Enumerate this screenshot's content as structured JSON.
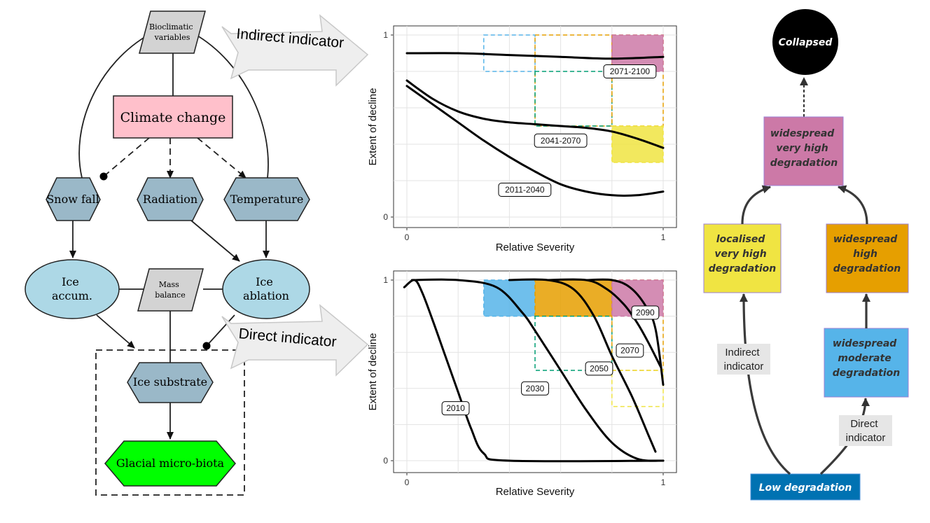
{
  "dag": {
    "bioclimatic": [
      "Bioclimatic",
      "variables"
    ],
    "climate_change": "Climate change",
    "snow_fall": "Snow fall",
    "radiation": "Radiation",
    "temperature": "Temperature",
    "ice_accum": [
      "Ice",
      "accum."
    ],
    "mass_balance": [
      "Mass",
      "balance"
    ],
    "ice_ablation": [
      "Ice",
      "ablation"
    ],
    "ice_substrate": "Ice substrate",
    "glacial_microbiota": "Glacial micro-biota",
    "colors": {
      "climate_change_fill": "#ffc0cb",
      "hexagon_fill": "#9ab8c8",
      "ellipse_fill": "#add8e6",
      "parallelogram_fill": "#d3d3d3",
      "microbiota_fill": "#00ff00"
    }
  },
  "arrows": {
    "indirect": "Indirect indicator",
    "direct": "Direct indicator"
  },
  "chart_data": [
    {
      "type": "line",
      "xlabel": "Relative Severity",
      "ylabel": "Extent of decline",
      "xlim": [
        0,
        1
      ],
      "ylim": [
        0,
        1
      ],
      "xticks": [
        "0",
        "1"
      ],
      "yticks": [
        "0",
        "1"
      ],
      "grid": true,
      "series": [
        {
          "name": "2071-2100",
          "x": [
            0,
            0.2,
            0.4,
            0.6,
            0.8,
            1.0
          ],
          "y": [
            0.9,
            0.9,
            0.89,
            0.88,
            0.87,
            0.88
          ]
        },
        {
          "name": "2041-2070",
          "x": [
            0,
            0.1,
            0.2,
            0.3,
            0.4,
            0.5,
            0.6,
            0.7,
            0.8,
            0.9,
            1.0
          ],
          "y": [
            0.75,
            0.65,
            0.58,
            0.54,
            0.52,
            0.51,
            0.5,
            0.49,
            0.47,
            0.43,
            0.38
          ]
        },
        {
          "name": "2011-2040",
          "x": [
            0,
            0.1,
            0.2,
            0.3,
            0.4,
            0.5,
            0.6,
            0.7,
            0.8,
            0.9,
            1.0
          ],
          "y": [
            0.72,
            0.62,
            0.52,
            0.42,
            0.33,
            0.25,
            0.18,
            0.14,
            0.12,
            0.12,
            0.14
          ]
        }
      ],
      "regions": [
        {
          "x0": 0.3,
          "x1": 0.5,
          "y0": 0.8,
          "y1": 1.0,
          "color": "#56b4e9",
          "filled": false
        },
        {
          "x0": 0.5,
          "x1": 0.8,
          "y0": 0.5,
          "y1": 1.0,
          "color": "#e69f00",
          "filled": false
        },
        {
          "x0": 0.5,
          "x1": 0.8,
          "y0": 0.5,
          "y1": 0.8,
          "color": "#009e73",
          "filled": false
        },
        {
          "x0": 0.8,
          "x1": 1.0,
          "y0": 0.5,
          "y1": 1.0,
          "color": "#e69f00",
          "filled": false
        },
        {
          "x0": 0.8,
          "x1": 1.0,
          "y0": 0.8,
          "y1": 1.0,
          "color": "#cc79a7",
          "filled": true
        },
        {
          "x0": 0.8,
          "x1": 1.0,
          "y0": 0.3,
          "y1": 0.5,
          "color": "#f0e442",
          "filled": true
        }
      ],
      "labels": [
        {
          "text": "2071-2100",
          "x": 0.87,
          "y": 0.8
        },
        {
          "text": "2041-2070",
          "x": 0.6,
          "y": 0.42
        },
        {
          "text": "2011-2040",
          "x": 0.46,
          "y": 0.15
        }
      ]
    },
    {
      "type": "line",
      "xlabel": "Relative Severity",
      "ylabel": "Extent of decline",
      "xlim": [
        0,
        1
      ],
      "ylim": [
        0,
        1
      ],
      "xticks": [
        "0",
        "1"
      ],
      "yticks": [
        "0",
        "1"
      ],
      "grid": true,
      "series": [
        {
          "name": "2010",
          "x": [
            -0.01,
            0.03,
            0.06,
            0.1,
            0.15,
            0.2,
            0.25,
            0.3,
            0.4,
            1.0
          ],
          "y": [
            0.96,
            1.0,
            0.93,
            0.78,
            0.58,
            0.38,
            0.18,
            0.04,
            0.0,
            0.0
          ]
        },
        {
          "name": "2030",
          "x": [
            0.02,
            0.2,
            0.35,
            0.45,
            0.5,
            0.6,
            0.7,
            0.8,
            0.9,
            1.0
          ],
          "y": [
            1.0,
            1.0,
            0.96,
            0.82,
            0.72,
            0.5,
            0.28,
            0.1,
            0.01,
            0.0
          ]
        },
        {
          "name": "2050",
          "x": [
            0.4,
            0.55,
            0.65,
            0.73,
            0.8,
            0.88,
            0.94,
            0.97
          ],
          "y": [
            1.0,
            1.0,
            0.95,
            0.8,
            0.58,
            0.35,
            0.15,
            0.05
          ]
        },
        {
          "name": "2070",
          "x": [
            0.55,
            0.7,
            0.78,
            0.85,
            0.9,
            0.94,
            0.99
          ],
          "y": [
            1.0,
            1.0,
            0.95,
            0.86,
            0.76,
            0.66,
            0.52
          ]
        },
        {
          "name": "2090",
          "x": [
            0.7,
            0.8,
            0.87,
            0.93,
            0.97,
            1.0
          ],
          "y": [
            1.0,
            1.0,
            0.96,
            0.86,
            0.73,
            0.42
          ]
        }
      ],
      "regions": [
        {
          "x0": 0.3,
          "x1": 0.5,
          "y0": 0.8,
          "y1": 1.0,
          "color": "#56b4e9",
          "filled": true
        },
        {
          "x0": 0.5,
          "x1": 0.8,
          "y0": 0.8,
          "y1": 1.0,
          "color": "#e69f00",
          "filled": true
        },
        {
          "x0": 0.5,
          "x1": 0.8,
          "y0": 0.5,
          "y1": 0.8,
          "color": "#009e73",
          "filled": false
        },
        {
          "x0": 0.8,
          "x1": 1.0,
          "y0": 0.5,
          "y1": 1.0,
          "color": "#e69f00",
          "filled": false
        },
        {
          "x0": 0.8,
          "x1": 1.0,
          "y0": 0.8,
          "y1": 1.0,
          "color": "#cc79a7",
          "filled": true
        },
        {
          "x0": 0.8,
          "x1": 1.0,
          "y0": 0.3,
          "y1": 0.5,
          "color": "#f0e442",
          "filled": false
        }
      ],
      "labels": [
        {
          "text": "2090",
          "x": 0.93,
          "y": 0.82
        },
        {
          "text": "2070",
          "x": 0.87,
          "y": 0.61
        },
        {
          "text": "2050",
          "x": 0.75,
          "y": 0.51
        },
        {
          "text": "2030",
          "x": 0.5,
          "y": 0.4
        },
        {
          "text": "2010",
          "x": 0.19,
          "y": 0.29
        }
      ]
    }
  ],
  "states": {
    "collapsed": "Collapsed",
    "widespread_very_high": [
      "widespread",
      "very high",
      "degradation"
    ],
    "localised_very_high": [
      "localised",
      "very high",
      "degradation"
    ],
    "widespread_high": [
      "widespread",
      "high",
      "degradation"
    ],
    "widespread_moderate": [
      "widespread",
      "moderate",
      "degradation"
    ],
    "low": "Low degradation",
    "indirect_label": [
      "Indirect",
      "indicator"
    ],
    "direct_label": [
      "Direct",
      "indicator"
    ],
    "colors": {
      "collapsed": "#000000",
      "very_high": "#cc79a7",
      "localised": "#f0e442",
      "high": "#e69f00",
      "moderate": "#56b4e9",
      "low": "#0072b2"
    }
  }
}
